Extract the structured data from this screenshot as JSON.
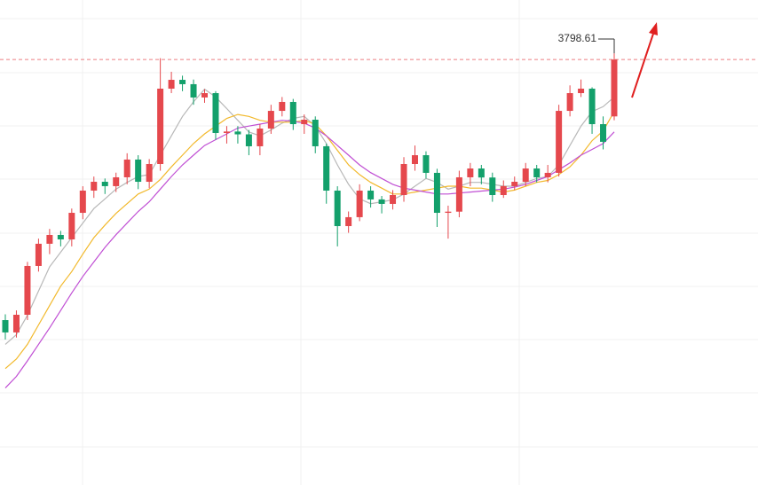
{
  "chart_data": {
    "type": "candlestick",
    "ylim": [
      3360,
      3860
    ],
    "up_color": "#e5484d",
    "down_color": "#13a06b",
    "last_line_color": "#e5484d",
    "open": [
      3530.0,
      3517.3,
      3535.5,
      3585.8,
      3608.7,
      3617.8,
      3613.2,
      3640.6,
      3663.5,
      3672.6,
      3668.1,
      3677.2,
      3695.5,
      3672.6,
      3690.9,
      3768.6,
      3777.7,
      3773.2,
      3759.5,
      3764.0,
      3722.9,
      3724.4,
      3721.5,
      3709.2,
      3727.5,
      3745.7,
      3754.9,
      3732.0,
      3736.6,
      3709.2,
      3663.5,
      3626.9,
      3636.1,
      3663.5,
      3654.4,
      3649.8,
      3658.9,
      3690.9,
      3700.0,
      3681.8,
      3640.6,
      3641.8,
      3677.2,
      3686.3,
      3677.0,
      3658.9,
      3668.1,
      3672.6,
      3686.3,
      3677.2,
      3681.8,
      3745.7,
      3764.0,
      3768.6,
      3732.0,
      3740.0
    ],
    "high": [
      3536,
      3540,
      3590,
      3614,
      3624,
      3622,
      3645,
      3668,
      3678,
      3676,
      3682,
      3702,
      3700,
      3696,
      3800,
      3786,
      3782,
      3778,
      3768,
      3766,
      3730,
      3730,
      3726,
      3732,
      3752,
      3760,
      3758,
      3742,
      3740,
      3712,
      3668,
      3642,
      3670,
      3668,
      3658,
      3664,
      3698,
      3710,
      3704,
      3686,
      3648,
      3684,
      3692,
      3690,
      3682,
      3674,
      3678,
      3692,
      3690,
      3690,
      3752,
      3772,
      3778,
      3770,
      3740,
      3805
    ],
    "low": [
      3510,
      3512,
      3530,
      3580,
      3598,
      3606,
      3606,
      3634,
      3656,
      3660,
      3662,
      3670,
      3665,
      3666,
      3684,
      3764,
      3766,
      3752,
      3754,
      3716,
      3712,
      3712,
      3700,
      3700,
      3722,
      3740,
      3726,
      3722,
      3702,
      3650,
      3606,
      3620,
      3632,
      3646,
      3640,
      3644,
      3652,
      3684,
      3676,
      3626,
      3614,
      3636,
      3668,
      3670,
      3652,
      3656,
      3664,
      3668,
      3672,
      3672,
      3678,
      3740,
      3760,
      3722,
      3706,
      3736
    ],
    "close": [
      3517.3,
      3535.5,
      3585.8,
      3608.7,
      3617.8,
      3613.2,
      3640.6,
      3663.5,
      3672.6,
      3668.1,
      3677.2,
      3695.5,
      3672.6,
      3690.9,
      3768.6,
      3777.7,
      3773.2,
      3759.5,
      3764.0,
      3722.9,
      3724.4,
      3721.5,
      3709.2,
      3727.5,
      3745.7,
      3754.9,
      3732.0,
      3736.6,
      3709.2,
      3663.5,
      3626.9,
      3636.1,
      3663.5,
      3654.4,
      3649.8,
      3658.9,
      3690.9,
      3700.0,
      3681.8,
      3640.6,
      3641.8,
      3677.2,
      3686.3,
      3677.0,
      3658.9,
      3668.1,
      3672.6,
      3686.3,
      3677.2,
      3681.8,
      3745.7,
      3764.0,
      3768.6,
      3732.0,
      3713.8,
      3798.61
    ],
    "lines": [
      {
        "color": "#b8b8b8",
        "values": [
          3505,
          3515,
          3535,
          3560,
          3585,
          3600,
          3615,
          3630,
          3645,
          3655,
          3665,
          3672,
          3678,
          3680,
          3700,
          3720,
          3740,
          3755,
          3768,
          3760,
          3748,
          3736,
          3724,
          3720,
          3726,
          3733,
          3738,
          3740,
          3730,
          3712,
          3690,
          3670,
          3655,
          3650,
          3652,
          3654,
          3660,
          3668,
          3676,
          3672,
          3665,
          3668,
          3672,
          3672,
          3670,
          3668,
          3668,
          3672,
          3676,
          3678,
          3690,
          3710,
          3730,
          3745,
          3750,
          3760
        ]
      },
      {
        "color": "#f2b92c",
        "values": [
          3480,
          3490,
          3505,
          3525,
          3545,
          3565,
          3580,
          3598,
          3615,
          3628,
          3640,
          3650,
          3660,
          3665,
          3675,
          3688,
          3700,
          3712,
          3722,
          3730,
          3738,
          3742,
          3740,
          3736,
          3734,
          3734,
          3734,
          3736,
          3732,
          3720,
          3705,
          3690,
          3680,
          3672,
          3666,
          3660,
          3660,
          3662,
          3664,
          3666,
          3668,
          3668,
          3666,
          3666,
          3664,
          3662,
          3664,
          3668,
          3672,
          3674,
          3680,
          3688,
          3700,
          3715,
          3725,
          3745
        ]
      },
      {
        "color": "#c04fd4",
        "values": [
          3460,
          3472,
          3488,
          3505,
          3522,
          3540,
          3558,
          3575,
          3590,
          3605,
          3618,
          3630,
          3642,
          3652,
          3665,
          3678,
          3690,
          3700,
          3710,
          3716,
          3722,
          3728,
          3730,
          3732,
          3734,
          3736,
          3735,
          3733,
          3728,
          3720,
          3710,
          3700,
          3690,
          3682,
          3676,
          3670,
          3666,
          3664,
          3662,
          3660,
          3660,
          3661,
          3662,
          3663,
          3664,
          3665,
          3667,
          3670,
          3674,
          3678,
          3685,
          3692,
          3700,
          3706,
          3712,
          3724
        ]
      }
    ]
  }
}
